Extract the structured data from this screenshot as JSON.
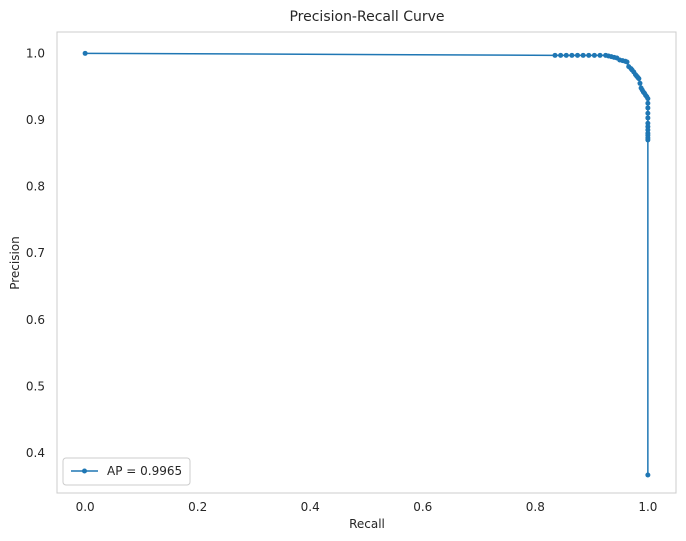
{
  "chart_data": {
    "type": "line",
    "title": "Precision-Recall Curve",
    "xlabel": "Recall",
    "ylabel": "Precision",
    "xlim": [
      -0.05,
      1.05
    ],
    "ylim": [
      0.34,
      1.032
    ],
    "xticks": [
      0.0,
      0.2,
      0.4,
      0.6,
      0.8,
      1.0
    ],
    "xtick_labels": [
      "0.0",
      "0.2",
      "0.4",
      "0.6",
      "0.8",
      "1.0"
    ],
    "yticks": [
      0.4,
      0.5,
      0.6,
      0.7,
      0.8,
      0.9,
      1.0
    ],
    "ytick_labels": [
      "0.4",
      "0.5",
      "0.6",
      "0.7",
      "0.8",
      "0.9",
      "1.0"
    ],
    "grid": false,
    "legend_position": "lower-left",
    "series": [
      {
        "name": "AP = 0.9965",
        "color": "#1f77b4",
        "marker": "circle",
        "x": [
          0.0,
          0.835,
          0.845,
          0.855,
          0.865,
          0.875,
          0.885,
          0.895,
          0.905,
          0.915,
          0.925,
          0.93,
          0.935,
          0.94,
          0.945,
          0.95,
          0.955,
          0.96,
          0.963,
          0.966,
          0.97,
          0.972,
          0.975,
          0.978,
          0.98,
          0.982,
          0.984,
          0.986,
          0.988,
          0.99,
          0.992,
          0.994,
          0.996,
          0.998,
          1.0,
          1.0,
          1.0,
          1.0,
          1.0,
          1.0,
          1.0,
          1.0,
          1.0,
          1.0,
          1.0,
          1.0,
          1.0
        ],
        "y": [
          1.0,
          0.997,
          0.997,
          0.997,
          0.997,
          0.997,
          0.997,
          0.997,
          0.997,
          0.997,
          0.997,
          0.996,
          0.995,
          0.994,
          0.993,
          0.99,
          0.989,
          0.988,
          0.987,
          0.98,
          0.977,
          0.975,
          0.972,
          0.968,
          0.966,
          0.964,
          0.962,
          0.955,
          0.948,
          0.945,
          0.942,
          0.94,
          0.937,
          0.935,
          0.932,
          0.925,
          0.918,
          0.91,
          0.903,
          0.895,
          0.89,
          0.885,
          0.88,
          0.877,
          0.873,
          0.87,
          0.367
        ]
      }
    ]
  }
}
